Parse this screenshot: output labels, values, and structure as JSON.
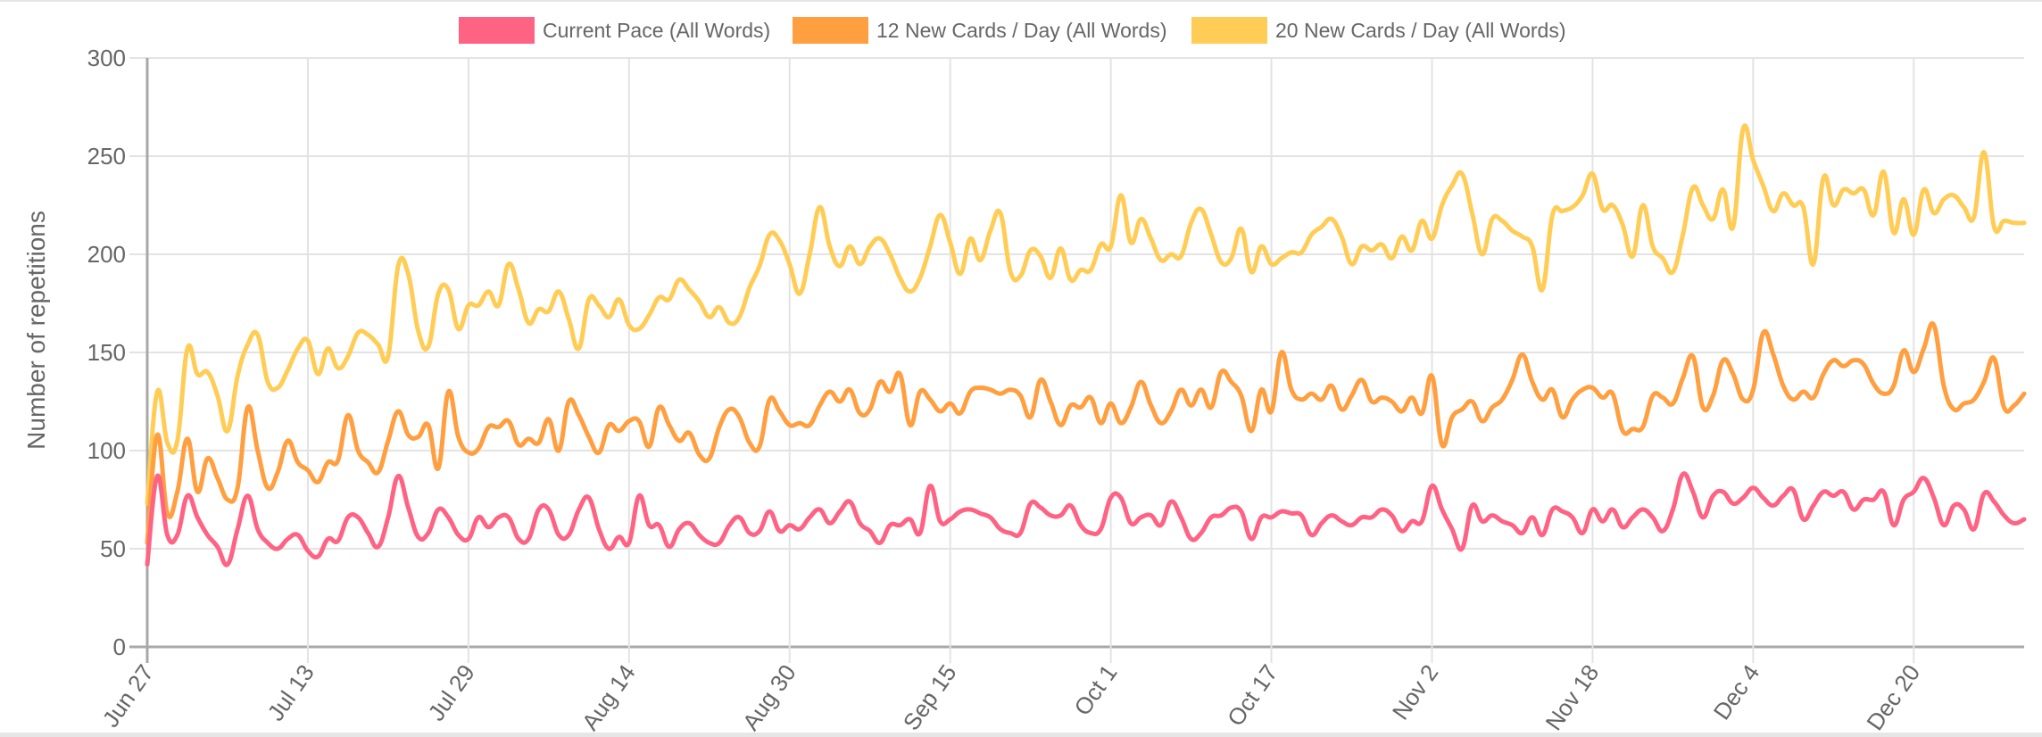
{
  "chart_data": {
    "type": "line",
    "title": "",
    "xlabel": "",
    "ylabel": "Number of repetitions",
    "ylim": [
      0,
      300
    ],
    "y_ticks": [
      "0",
      "50",
      "100",
      "150",
      "200",
      "250",
      "300"
    ],
    "x_tick_labels": [
      "Jun 27",
      "Jul 13",
      "Jul 29",
      "Aug 14",
      "Aug 30",
      "Sep 15",
      "Oct 1",
      "Oct 17",
      "Nov 2",
      "Nov 18",
      "Dec 4",
      "Dec 20"
    ],
    "x_tick_every_days": 16,
    "x_range_days": [
      0,
      187
    ],
    "grid": true,
    "legend_position": "top",
    "series": [
      {
        "name": "Current Pace (All Words)",
        "color": "#ff6384",
        "values": [
          42,
          87,
          57,
          57,
          77,
          66,
          57,
          51,
          42,
          60,
          77,
          60,
          53,
          50,
          55,
          57,
          49,
          46,
          55,
          54,
          66,
          66,
          58,
          51,
          66,
          87,
          71,
          56,
          58,
          70,
          66,
          57,
          55,
          66,
          61,
          66,
          66,
          55,
          55,
          70,
          70,
          57,
          57,
          70,
          76,
          60,
          50,
          56,
          53,
          77,
          62,
          62,
          51,
          60,
          63,
          57,
          53,
          53,
          62,
          66,
          58,
          59,
          69,
          59,
          62,
          60,
          66,
          70,
          63,
          69,
          74,
          63,
          59,
          53,
          62,
          62,
          65,
          58,
          82,
          64,
          65,
          69,
          70,
          68,
          66,
          60,
          58,
          58,
          73,
          71,
          67,
          67,
          72,
          62,
          58,
          60,
          76,
          76,
          63,
          66,
          67,
          62,
          74,
          66,
          55,
          58,
          66,
          67,
          71,
          69,
          55,
          66,
          66,
          69,
          68,
          67,
          57,
          63,
          67,
          64,
          62,
          66,
          66,
          70,
          67,
          59,
          64,
          64,
          82,
          70,
          60,
          50,
          72,
          64,
          67,
          64,
          62,
          58,
          66,
          57,
          70,
          69,
          66,
          58,
          70,
          64,
          70,
          61,
          66,
          70,
          66,
          59,
          70,
          88,
          79,
          66,
          77,
          79,
          73,
          76,
          81,
          76,
          72,
          77,
          80,
          65,
          72,
          79,
          77,
          79,
          70,
          75,
          75,
          79,
          62,
          75,
          79,
          86,
          76,
          62,
          72,
          70,
          60,
          78,
          74,
          67,
          63,
          65
        ]
      },
      {
        "name": "12 New Cards / Day (All Words)",
        "color": "#ff9f40",
        "values": [
          53,
          108,
          68,
          79,
          106,
          79,
          96,
          86,
          75,
          81,
          122,
          100,
          81,
          89,
          105,
          94,
          90,
          84,
          94,
          95,
          118,
          100,
          94,
          89,
          105,
          120,
          108,
          107,
          113,
          91,
          130,
          107,
          99,
          101,
          112,
          112,
          115,
          103,
          106,
          104,
          116,
          100,
          125,
          118,
          107,
          99,
          113,
          110,
          115,
          115,
          102,
          122,
          113,
          105,
          109,
          98,
          96,
          112,
          121,
          117,
          104,
          102,
          126,
          120,
          113,
          114,
          113,
          123,
          130,
          125,
          131,
          119,
          121,
          135,
          130,
          139,
          113,
          130,
          126,
          120,
          124,
          119,
          130,
          132,
          131,
          129,
          131,
          128,
          117,
          136,
          125,
          113,
          123,
          122,
          127,
          114,
          124,
          114,
          122,
          135,
          123,
          114,
          120,
          131,
          123,
          131,
          122,
          140,
          135,
          128,
          110,
          131,
          120,
          150,
          131,
          126,
          129,
          126,
          133,
          121,
          128,
          136,
          125,
          127,
          125,
          120,
          127,
          119,
          138,
          103,
          117,
          121,
          125,
          115,
          122,
          126,
          136,
          149,
          135,
          126,
          131,
          117,
          126,
          131,
          132,
          127,
          129,
          110,
          111,
          112,
          128,
          127,
          124,
          137,
          148,
          122,
          128,
          146,
          139,
          126,
          131,
          160,
          149,
          133,
          126,
          130,
          127,
          139,
          146,
          143,
          146,
          144,
          134,
          129,
          133,
          151,
          140,
          152,
          164,
          133,
          121,
          124,
          126,
          135,
          147,
          122,
          123,
          129
        ]
      },
      {
        "name": "20 New Cards / Day (All Words)",
        "color": "#ffcd56",
        "values": [
          73,
          130,
          104,
          105,
          152,
          139,
          140,
          128,
          110,
          138,
          154,
          159,
          135,
          132,
          141,
          152,
          156,
          139,
          152,
          142,
          148,
          160,
          159,
          154,
          148,
          194,
          190,
          161,
          153,
          180,
          182,
          162,
          174,
          174,
          181,
          174,
          195,
          182,
          165,
          172,
          171,
          181,
          167,
          152,
          177,
          174,
          168,
          177,
          164,
          162,
          169,
          178,
          177,
          187,
          182,
          176,
          168,
          173,
          165,
          168,
          183,
          194,
          210,
          207,
          195,
          180,
          200,
          224,
          204,
          194,
          204,
          195,
          204,
          208,
          200,
          188,
          181,
          188,
          204,
          220,
          206,
          190,
          208,
          197,
          212,
          221,
          191,
          189,
          202,
          199,
          188,
          203,
          187,
          192,
          192,
          205,
          204,
          230,
          206,
          218,
          208,
          197,
          200,
          199,
          216,
          223,
          210,
          196,
          198,
          213,
          191,
          204,
          195,
          198,
          201,
          201,
          210,
          214,
          218,
          209,
          195,
          204,
          202,
          205,
          198,
          209,
          202,
          217,
          208,
          225,
          235,
          241,
          221,
          200,
          218,
          217,
          212,
          209,
          204,
          182,
          220,
          222,
          224,
          230,
          241,
          223,
          225,
          215,
          199,
          225,
          204,
          198,
          191,
          210,
          234,
          225,
          218,
          233,
          214,
          264,
          248,
          235,
          222,
          231,
          225,
          224,
          195,
          239,
          225,
          233,
          231,
          233,
          220,
          242,
          211,
          228,
          210,
          233,
          221,
          228,
          230,
          224,
          219,
          252,
          214,
          217,
          216,
          216
        ]
      }
    ]
  }
}
